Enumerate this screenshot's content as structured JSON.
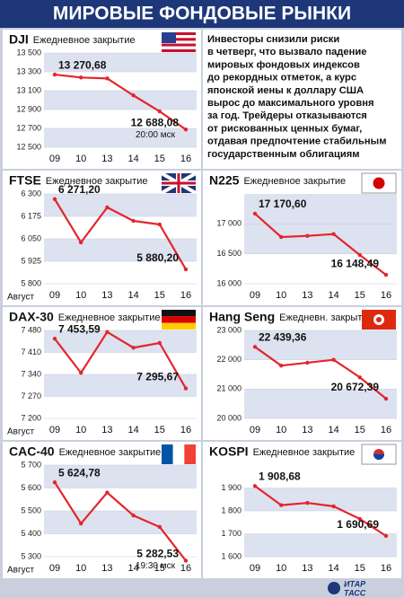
{
  "title": "МИРОВЫЕ ФОНДОВЫЕ РЫНКИ",
  "text": [
    "Инвесторы снизили риски",
    "в четверг, что вызвало падение",
    "мировых фондовых индексов",
    "до рекордных отметок, а курс",
    "японской иены к доллару США",
    "вырос до максимального уровня",
    "за год. Трейдеры отказываются",
    "от рискованных ценных бумаг,",
    "отдавая предпочтение стабильным",
    "государственным облигациям"
  ],
  "source": [
    "ИТАР",
    "ТАСС"
  ],
  "chart_data": [
    {
      "type": "line",
      "title": "DJI",
      "subtitle": "Ежедневное закрытие",
      "color": "#e3262b",
      "categories": [
        "09",
        "10",
        "13",
        "14",
        "15",
        "16"
      ],
      "values": [
        13270.68,
        13240,
        13230,
        13050,
        12880,
        12688.08
      ],
      "value_labels": [
        "13 270,68",
        null,
        null,
        null,
        null,
        "12 688,08"
      ],
      "annotation": "20:00 мск",
      "ylim": [
        12500,
        13500
      ],
      "yticks": [
        {
          "value": 12500,
          "label": "12 500"
        },
        {
          "value": 12700,
          "label": "12 700"
        },
        {
          "value": 12900,
          "label": "12 900"
        },
        {
          "value": 13100,
          "label": "13 100"
        },
        {
          "value": 13300,
          "label": "13 300"
        },
        {
          "value": 13500,
          "label": "13 500"
        }
      ]
    },
    {
      "type": "line",
      "title": "FTSE",
      "subtitle": "Ежедневное закрытие",
      "color": "#e3262b",
      "xlabel": "Август",
      "categories": [
        "09",
        "10",
        "13",
        "14",
        "15",
        "16"
      ],
      "values": [
        6271.2,
        6030,
        6225,
        6150,
        6130,
        5880.2
      ],
      "value_labels": [
        "6 271,20",
        null,
        null,
        null,
        null,
        "5 880,20"
      ],
      "ylim": [
        5800,
        6300
      ],
      "yticks": [
        {
          "value": 5800,
          "label": "5 800"
        },
        {
          "value": 5925,
          "label": "5 925"
        },
        {
          "value": 6050,
          "label": "6 050"
        },
        {
          "value": 6175,
          "label": "6 175"
        },
        {
          "value": 6300,
          "label": "6 300"
        }
      ]
    },
    {
      "type": "line",
      "title": "N225",
      "subtitle": "Ежедневное закрытие",
      "color": "#e3262b",
      "categories": [
        "09",
        "10",
        "13",
        "14",
        "15",
        "16"
      ],
      "values": [
        17170.6,
        16780,
        16800,
        16830,
        16480,
        16148.49
      ],
      "value_labels": [
        "17 170,60",
        null,
        null,
        null,
        null,
        "16 148,49"
      ],
      "ylim": [
        16000,
        17500
      ],
      "yticks": [
        {
          "value": 16000,
          "label": "16 000"
        },
        {
          "value": 16500,
          "label": "16 500"
        },
        {
          "value": 17000,
          "label": "17 000"
        }
      ]
    },
    {
      "type": "line",
      "title": "DAX-30",
      "subtitle": "Ежедневное закрытие",
      "color": "#e3262b",
      "xlabel": "Август",
      "categories": [
        "09",
        "10",
        "13",
        "14",
        "15",
        "16"
      ],
      "values": [
        7453.59,
        7345,
        7475,
        7425,
        7440,
        7295.67
      ],
      "value_labels": [
        "7 453,59",
        null,
        null,
        null,
        null,
        "7 295,67"
      ],
      "ylim": [
        7200,
        7480
      ],
      "yticks": [
        {
          "value": 7200,
          "label": "7 200"
        },
        {
          "value": 7270,
          "label": "7 270"
        },
        {
          "value": 7340,
          "label": "7 340"
        },
        {
          "value": 7410,
          "label": "7 410"
        },
        {
          "value": 7480,
          "label": "7 480"
        }
      ]
    },
    {
      "type": "line",
      "title": "Hang Seng",
      "subtitle": "Ежедневн. закрытие",
      "color": "#e3262b",
      "categories": [
        "09",
        "10",
        "13",
        "14",
        "15",
        "16"
      ],
      "values": [
        22439.36,
        21800,
        21900,
        22000,
        21400,
        20672.39
      ],
      "value_labels": [
        "22 439,36",
        null,
        null,
        null,
        null,
        "20 672,39"
      ],
      "ylim": [
        20000,
        23000
      ],
      "yticks": [
        {
          "value": 20000,
          "label": "20 000"
        },
        {
          "value": 21000,
          "label": "21 000"
        },
        {
          "value": 22000,
          "label": "22 000"
        },
        {
          "value": 23000,
          "label": "23 000"
        }
      ]
    },
    {
      "type": "line",
      "title": "CAC-40",
      "subtitle": "Ежедневное закрытие",
      "color": "#e3262b",
      "xlabel": "Август",
      "categories": [
        "09",
        "10",
        "13",
        "14",
        "15",
        "16"
      ],
      "values": [
        5624.78,
        5445,
        5580,
        5480,
        5430,
        5282.53
      ],
      "value_labels": [
        "5 624,78",
        null,
        null,
        null,
        null,
        "5 282,53"
      ],
      "annotation": "19:30 мск",
      "ylim": [
        5300,
        5700
      ],
      "yticks": [
        {
          "value": 5300,
          "label": "5 300"
        },
        {
          "value": 5400,
          "label": "5 400"
        },
        {
          "value": 5500,
          "label": "5 500"
        },
        {
          "value": 5600,
          "label": "5 600"
        },
        {
          "value": 5700,
          "label": "5 700"
        }
      ]
    },
    {
      "type": "line",
      "title": "KOSPI",
      "subtitle": "Ежедневное закрытие",
      "color": "#e3262b",
      "categories": [
        "09",
        "10",
        "13",
        "14",
        "15",
        "16"
      ],
      "values": [
        1908.68,
        1825,
        1835,
        1820,
        1765,
        1690.69
      ],
      "value_labels": [
        "1 908,68",
        null,
        null,
        null,
        null,
        "1 690,69"
      ],
      "ylim": [
        1600,
        2000
      ],
      "yticks": [
        {
          "value": 1600,
          "label": "1 600"
        },
        {
          "value": 1700,
          "label": "1 700"
        },
        {
          "value": 1800,
          "label": "1 800"
        },
        {
          "value": 1900,
          "label": "1 900"
        }
      ]
    }
  ]
}
